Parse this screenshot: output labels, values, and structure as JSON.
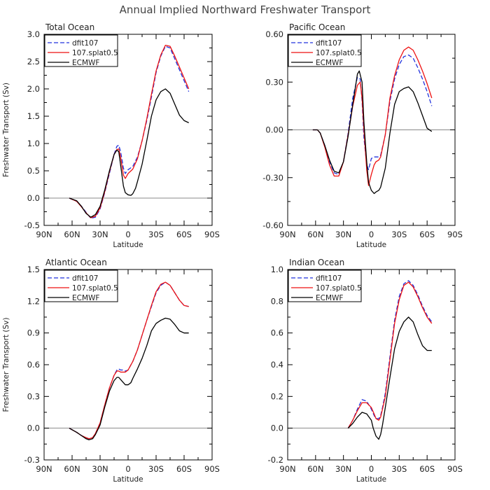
{
  "title": "Annual Implied Northward Freshwater Transport",
  "legend_labels": [
    "dfit107",
    "107.splat0.5",
    "ECMWF"
  ],
  "series_colors": [
    "#2233dd",
    "#ee1111",
    "#000000"
  ],
  "chart_data": [
    {
      "type": "line",
      "title": "Total Ocean",
      "xlabel": "Latitude",
      "ylabel": "Freshwater Transport (Sv)",
      "xlim": [
        -90,
        90
      ],
      "xticks": [
        -90,
        -60,
        -30,
        0,
        30,
        60,
        90
      ],
      "xtick_labels": [
        "90N",
        "60N",
        "30N",
        "0",
        "30S",
        "60S",
        "90S"
      ],
      "ylim": [
        -0.5,
        3.0
      ],
      "yticks": [
        -0.5,
        0.0,
        0.5,
        1.0,
        1.5,
        2.0,
        2.5,
        3.0
      ],
      "ytick_labels": [
        "-0.5",
        "0.0",
        "0.5",
        "1.0",
        "1.5",
        "2.0",
        "2.5",
        "3.0"
      ],
      "legend": "top-left",
      "series": [
        {
          "name": "dfit107",
          "style": "dashed",
          "x": [
            -63,
            -55,
            -50,
            -45,
            -40,
            -35,
            -30,
            -25,
            -20,
            -15,
            -12,
            -10,
            -8,
            -5,
            -3,
            0,
            5,
            10,
            15,
            20,
            25,
            30,
            35,
            40,
            45,
            50,
            55,
            60,
            65
          ],
          "values": [
            0,
            -0.06,
            -0.15,
            -0.26,
            -0.37,
            -0.35,
            -0.2,
            0.1,
            0.45,
            0.8,
            0.95,
            0.97,
            0.85,
            0.55,
            0.45,
            0.52,
            0.58,
            0.75,
            1.05,
            1.42,
            1.85,
            2.3,
            2.6,
            2.78,
            2.75,
            2.55,
            2.35,
            2.15,
            1.95
          ]
        },
        {
          "name": "107.splat0.5",
          "style": "solid",
          "x": [
            -63,
            -55,
            -50,
            -45,
            -40,
            -35,
            -30,
            -25,
            -20,
            -15,
            -12,
            -10,
            -8,
            -5,
            -3,
            0,
            5,
            10,
            15,
            20,
            25,
            30,
            35,
            40,
            45,
            50,
            55,
            60,
            65
          ],
          "values": [
            0,
            -0.06,
            -0.16,
            -0.27,
            -0.36,
            -0.33,
            -0.18,
            0.12,
            0.48,
            0.8,
            0.89,
            0.9,
            0.75,
            0.42,
            0.36,
            0.45,
            0.53,
            0.72,
            1.05,
            1.45,
            1.9,
            2.33,
            2.62,
            2.8,
            2.78,
            2.6,
            2.4,
            2.2,
            2.0
          ]
        },
        {
          "name": "ECMWF",
          "style": "solid",
          "x": [
            -63,
            -55,
            -50,
            -45,
            -40,
            -35,
            -30,
            -25,
            -20,
            -15,
            -12,
            -10,
            -8,
            -5,
            -3,
            0,
            3,
            5,
            8,
            10,
            15,
            20,
            25,
            30,
            35,
            40,
            45,
            50,
            55,
            60,
            65
          ],
          "values": [
            0,
            -0.05,
            -0.15,
            -0.28,
            -0.35,
            -0.3,
            -0.15,
            0.15,
            0.5,
            0.8,
            0.88,
            0.85,
            0.6,
            0.22,
            0.1,
            0.06,
            0.05,
            0.08,
            0.18,
            0.3,
            0.62,
            1.05,
            1.5,
            1.8,
            1.95,
            2.0,
            1.92,
            1.72,
            1.52,
            1.42,
            1.38
          ]
        }
      ]
    },
    {
      "type": "line",
      "title": "Pacific Ocean",
      "xlabel": "Latitude",
      "ylabel": "",
      "xlim": [
        -90,
        90
      ],
      "xticks": [
        -90,
        -60,
        -30,
        0,
        30,
        60,
        90
      ],
      "xtick_labels": [
        "90N",
        "60N",
        "30N",
        "0",
        "30S",
        "60S",
        "90S"
      ],
      "ylim": [
        -0.6,
        0.6
      ],
      "yticks": [
        -0.6,
        -0.3,
        0.0,
        0.3,
        0.6
      ],
      "ytick_labels": [
        "-0.60",
        "-0.30",
        "0.00",
        "0.30",
        "0.60"
      ],
      "legend": "top-left",
      "series": [
        {
          "name": "dfit107",
          "style": "dashed",
          "x": [
            -63,
            -58,
            -55,
            -50,
            -45,
            -40,
            -35,
            -30,
            -25,
            -20,
            -15,
            -12,
            -10,
            -8,
            -5,
            -3,
            0,
            3,
            5,
            8,
            10,
            15,
            20,
            25,
            30,
            35,
            40,
            45,
            50,
            55,
            60,
            65
          ],
          "values": [
            0,
            0,
            -0.02,
            -0.1,
            -0.2,
            -0.27,
            -0.28,
            -0.2,
            -0.02,
            0.2,
            0.33,
            0.32,
            0.18,
            -0.05,
            -0.22,
            -0.25,
            -0.18,
            -0.17,
            -0.17,
            -0.17,
            -0.16,
            -0.03,
            0.18,
            0.32,
            0.41,
            0.46,
            0.47,
            0.45,
            0.39,
            0.32,
            0.24,
            0.15
          ]
        },
        {
          "name": "107.splat0.5",
          "style": "solid",
          "x": [
            -63,
            -58,
            -55,
            -50,
            -45,
            -40,
            -35,
            -30,
            -25,
            -20,
            -15,
            -12,
            -10,
            -8,
            -5,
            -3,
            0,
            3,
            5,
            8,
            10,
            15,
            20,
            25,
            30,
            35,
            40,
            45,
            50,
            55,
            60,
            65
          ],
          "values": [
            0,
            0,
            -0.02,
            -0.11,
            -0.22,
            -0.29,
            -0.29,
            -0.2,
            -0.03,
            0.15,
            0.28,
            0.3,
            0.2,
            0.0,
            -0.25,
            -0.35,
            -0.28,
            -0.22,
            -0.2,
            -0.19,
            -0.17,
            -0.03,
            0.2,
            0.34,
            0.44,
            0.5,
            0.52,
            0.5,
            0.44,
            0.37,
            0.29,
            0.2
          ]
        },
        {
          "name": "ECMWF",
          "style": "solid",
          "x": [
            -63,
            -58,
            -55,
            -50,
            -45,
            -40,
            -35,
            -30,
            -25,
            -20,
            -15,
            -13,
            -10,
            -8,
            -5,
            -3,
            0,
            3,
            5,
            8,
            10,
            15,
            20,
            25,
            30,
            35,
            40,
            45,
            50,
            55,
            60,
            65
          ],
          "values": [
            0,
            0,
            -0.02,
            -0.1,
            -0.19,
            -0.26,
            -0.27,
            -0.2,
            -0.04,
            0.16,
            0.35,
            0.37,
            0.3,
            0.05,
            -0.2,
            -0.33,
            -0.38,
            -0.4,
            -0.39,
            -0.38,
            -0.36,
            -0.24,
            -0.02,
            0.16,
            0.24,
            0.26,
            0.27,
            0.24,
            0.17,
            0.09,
            0.01,
            -0.01
          ]
        }
      ]
    },
    {
      "type": "line",
      "title": "Atlantic Ocean",
      "xlabel": "Latitude",
      "ylabel": "Freshwater Transport (Sv)",
      "xlim": [
        -90,
        90
      ],
      "xticks": [
        -90,
        -60,
        -30,
        0,
        30,
        60,
        90
      ],
      "xtick_labels": [
        "90N",
        "60N",
        "30N",
        "0",
        "30S",
        "60S",
        "90S"
      ],
      "ylim": [
        -0.3,
        1.5
      ],
      "yticks": [
        -0.3,
        0.0,
        0.3,
        0.6,
        0.9,
        1.2,
        1.5
      ],
      "ytick_labels": [
        "-0.3",
        "0.0",
        "0.3",
        "0.6",
        "0.9",
        "1.2",
        "1.5"
      ],
      "legend": "top-left",
      "series": [
        {
          "name": "dfit107",
          "style": "dashed",
          "x": [
            -63,
            -55,
            -50,
            -45,
            -42,
            -38,
            -35,
            -30,
            -25,
            -20,
            -15,
            -12,
            -10,
            -8,
            -5,
            -3,
            0,
            5,
            10,
            15,
            20,
            25,
            30,
            35,
            40,
            45,
            50,
            55,
            60,
            65
          ],
          "values": [
            0,
            -0.04,
            -0.07,
            -0.09,
            -0.1,
            -0.09,
            -0.05,
            0.05,
            0.22,
            0.38,
            0.5,
            0.55,
            0.56,
            0.55,
            0.55,
            0.54,
            0.55,
            0.63,
            0.74,
            0.88,
            1.02,
            1.15,
            1.28,
            1.35,
            1.38,
            1.35,
            1.28,
            1.21,
            1.16,
            1.15
          ]
        },
        {
          "name": "107.splat0.5",
          "style": "solid",
          "x": [
            -63,
            -55,
            -50,
            -45,
            -42,
            -38,
            -35,
            -30,
            -25,
            -20,
            -15,
            -12,
            -10,
            -8,
            -5,
            -3,
            0,
            5,
            10,
            15,
            20,
            25,
            30,
            35,
            40,
            45,
            50,
            55,
            60,
            65
          ],
          "values": [
            0,
            -0.04,
            -0.07,
            -0.09,
            -0.1,
            -0.09,
            -0.05,
            0.05,
            0.22,
            0.38,
            0.5,
            0.54,
            0.54,
            0.53,
            0.53,
            0.53,
            0.55,
            0.63,
            0.74,
            0.88,
            1.02,
            1.16,
            1.29,
            1.36,
            1.38,
            1.35,
            1.28,
            1.21,
            1.16,
            1.15
          ]
        },
        {
          "name": "ECMWF",
          "style": "solid",
          "x": [
            -63,
            -55,
            -50,
            -45,
            -42,
            -38,
            -35,
            -30,
            -25,
            -20,
            -15,
            -12,
            -10,
            -8,
            -5,
            -3,
            0,
            3,
            5,
            10,
            15,
            20,
            25,
            30,
            35,
            40,
            45,
            50,
            55,
            60,
            65
          ],
          "values": [
            0,
            -0.04,
            -0.07,
            -0.1,
            -0.11,
            -0.1,
            -0.06,
            0.03,
            0.2,
            0.35,
            0.45,
            0.48,
            0.48,
            0.46,
            0.43,
            0.41,
            0.41,
            0.43,
            0.47,
            0.56,
            0.66,
            0.78,
            0.92,
            0.99,
            1.02,
            1.04,
            1.03,
            0.98,
            0.92,
            0.9,
            0.9
          ]
        }
      ]
    },
    {
      "type": "line",
      "title": "Indian Ocean",
      "xlabel": "Latitude",
      "ylabel": "",
      "xlim": [
        -90,
        90
      ],
      "xticks": [
        -90,
        -60,
        -30,
        0,
        30,
        60,
        90
      ],
      "xtick_labels": [
        "90N",
        "60N",
        "30N",
        "0",
        "30S",
        "60S",
        "90S"
      ],
      "ylim": [
        -0.2,
        1.0
      ],
      "yticks": [
        -0.2,
        0.0,
        0.2,
        0.4,
        0.6,
        0.8,
        1.0
      ],
      "ytick_labels": [
        "-0.2",
        "0.0",
        "0.2",
        "0.4",
        "0.6",
        "0.8",
        "1.0"
      ],
      "legend": "top-left",
      "series": [
        {
          "name": "dfit107",
          "style": "dashed",
          "x": [
            -25,
            -20,
            -15,
            -10,
            -5,
            0,
            3,
            5,
            8,
            10,
            12,
            15,
            20,
            25,
            30,
            35,
            40,
            45,
            50,
            55,
            60,
            65
          ],
          "values": [
            0,
            0.05,
            0.12,
            0.18,
            0.17,
            0.12,
            0.08,
            0.06,
            0.06,
            0.08,
            0.13,
            0.22,
            0.45,
            0.68,
            0.83,
            0.91,
            0.93,
            0.9,
            0.84,
            0.77,
            0.71,
            0.67
          ]
        },
        {
          "name": "107.splat0.5",
          "style": "solid",
          "x": [
            -25,
            -20,
            -15,
            -10,
            -5,
            0,
            3,
            5,
            8,
            10,
            12,
            15,
            20,
            25,
            30,
            35,
            40,
            45,
            50,
            55,
            60,
            65
          ],
          "values": [
            0,
            0.05,
            0.11,
            0.16,
            0.16,
            0.13,
            0.09,
            0.06,
            0.05,
            0.07,
            0.12,
            0.2,
            0.43,
            0.66,
            0.81,
            0.9,
            0.92,
            0.89,
            0.83,
            0.76,
            0.7,
            0.66
          ]
        },
        {
          "name": "ECMWF",
          "style": "solid",
          "x": [
            -25,
            -20,
            -15,
            -10,
            -5,
            0,
            2,
            5,
            8,
            10,
            12,
            15,
            20,
            25,
            30,
            35,
            40,
            45,
            50,
            55,
            60,
            65
          ],
          "values": [
            0,
            0.03,
            0.07,
            0.1,
            0.09,
            0.05,
            0.0,
            -0.05,
            -0.07,
            -0.04,
            0.02,
            0.13,
            0.32,
            0.5,
            0.61,
            0.67,
            0.7,
            0.67,
            0.59,
            0.52,
            0.49,
            0.49
          ]
        }
      ]
    }
  ]
}
